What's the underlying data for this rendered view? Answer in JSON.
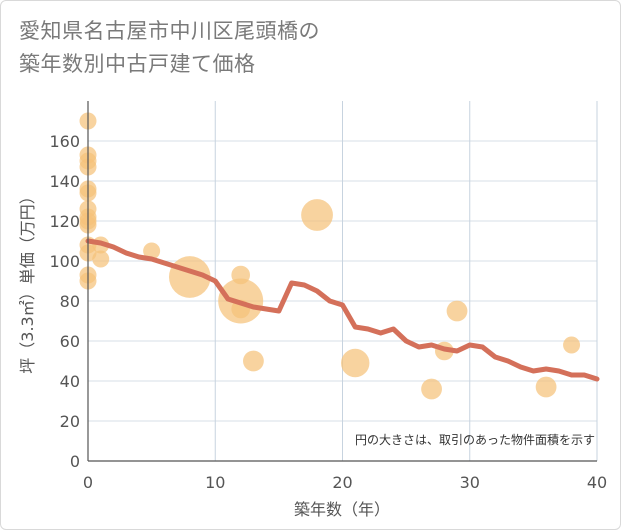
{
  "chart_data": {
    "type": "scatter",
    "title_line1": "愛知県名古屋市中川区尾頭橋の",
    "title_line2": "築年数別中古戸建て価格",
    "xlabel": "築年数（年）",
    "ylabel": "坪（3.3㎡）単価（万円）",
    "note": "円の大きさは、取引のあった物件面積を示す",
    "xlim": [
      0,
      40
    ],
    "ylim": [
      0,
      180
    ],
    "xticks": [
      0,
      10,
      20,
      30,
      40
    ],
    "yticks": [
      0,
      20,
      40,
      60,
      80,
      100,
      120,
      140,
      160
    ],
    "series": [
      {
        "name": "取引事例",
        "kind": "bubble",
        "color": "#f5c27a",
        "points": [
          {
            "x": 0,
            "y": 170,
            "size": 1
          },
          {
            "x": 0,
            "y": 153,
            "size": 1
          },
          {
            "x": 0,
            "y": 150,
            "size": 1
          },
          {
            "x": 0,
            "y": 147,
            "size": 1
          },
          {
            "x": 0,
            "y": 136,
            "size": 1
          },
          {
            "x": 0,
            "y": 134,
            "size": 1
          },
          {
            "x": 0,
            "y": 126,
            "size": 1
          },
          {
            "x": 0,
            "y": 122,
            "size": 1
          },
          {
            "x": 0,
            "y": 120,
            "size": 1
          },
          {
            "x": 0,
            "y": 118,
            "size": 1
          },
          {
            "x": 0,
            "y": 108,
            "size": 1
          },
          {
            "x": 0,
            "y": 104,
            "size": 1
          },
          {
            "x": 0,
            "y": 93,
            "size": 1
          },
          {
            "x": 0,
            "y": 90,
            "size": 1
          },
          {
            "x": 1,
            "y": 108,
            "size": 1
          },
          {
            "x": 1,
            "y": 101,
            "size": 1
          },
          {
            "x": 5,
            "y": 105,
            "size": 1
          },
          {
            "x": 8,
            "y": 92,
            "size": 6
          },
          {
            "x": 12,
            "y": 93,
            "size": 1.2
          },
          {
            "x": 12,
            "y": 80,
            "size": 7
          },
          {
            "x": 12,
            "y": 76,
            "size": 1.2
          },
          {
            "x": 13,
            "y": 50,
            "size": 1.5
          },
          {
            "x": 18,
            "y": 123,
            "size": 3.5
          },
          {
            "x": 21,
            "y": 49,
            "size": 2.8
          },
          {
            "x": 27,
            "y": 36,
            "size": 1.5
          },
          {
            "x": 28,
            "y": 55,
            "size": 1.2
          },
          {
            "x": 29,
            "y": 75,
            "size": 1.5
          },
          {
            "x": 36,
            "y": 37,
            "size": 1.5
          },
          {
            "x": 38,
            "y": 58,
            "size": 1
          }
        ]
      },
      {
        "name": "平均",
        "kind": "line",
        "color": "#d4705a",
        "x": [
          0,
          1,
          2,
          3,
          4,
          5,
          6,
          7,
          8,
          9,
          10,
          11,
          12,
          13,
          14,
          15,
          16,
          17,
          18,
          19,
          20,
          21,
          22,
          23,
          24,
          25,
          26,
          27,
          28,
          29,
          30,
          31,
          32,
          33,
          34,
          35,
          36,
          37,
          38,
          39,
          40
        ],
        "y": [
          110,
          109,
          107,
          104,
          102,
          101,
          99,
          97,
          95,
          93,
          90,
          81,
          79,
          77,
          76,
          75,
          89,
          88,
          85,
          80,
          78,
          67,
          66,
          64,
          66,
          60,
          57,
          58,
          56,
          55,
          58,
          57,
          52,
          50,
          47,
          45,
          46,
          45,
          43,
          43,
          41
        ]
      }
    ]
  }
}
